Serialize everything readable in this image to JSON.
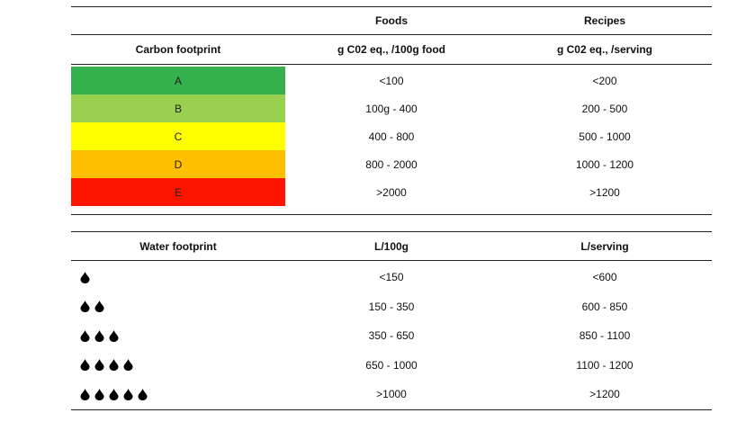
{
  "carbon": {
    "top_header": {
      "col1": "",
      "col2": "Foods",
      "col3": "Recipes"
    },
    "header": {
      "col1": "Carbon footprint",
      "col2": "g C02 eq., /100g food",
      "col3": "g C02 eq., /serving"
    },
    "rows": [
      {
        "grade": "A",
        "color": "#34b04c",
        "foods": "<100",
        "recipes": "<200"
      },
      {
        "grade": "B",
        "color": "#98d150",
        "foods": "100g - 400",
        "recipes": "200 - 500"
      },
      {
        "grade": "C",
        "color": "#ffff00",
        "foods": "400 - 800",
        "recipes": "500 - 1000"
      },
      {
        "grade": "D",
        "color": "#ffbf00",
        "foods": "800 - 2000",
        "recipes": "1000 - 1200"
      },
      {
        "grade": "E",
        "color": "#fe1500",
        "foods": ">2000",
        "recipes": ">1200"
      }
    ]
  },
  "water": {
    "header": {
      "col1": "Water footprint",
      "col2": "L/100g",
      "col3": "L/serving"
    },
    "icon": "water-drop-icon",
    "rows": [
      {
        "drops": 1,
        "per100g": "<150",
        "serving": "<600"
      },
      {
        "drops": 2,
        "per100g": "150 - 350",
        "serving": "600 - 850"
      },
      {
        "drops": 3,
        "per100g": "350 - 650",
        "serving": "850 - 1100"
      },
      {
        "drops": 4,
        "per100g": "650 - 1000",
        "serving": "1100 - 1200"
      },
      {
        "drops": 5,
        "per100g": ">1000",
        "serving": ">1200"
      }
    ]
  }
}
